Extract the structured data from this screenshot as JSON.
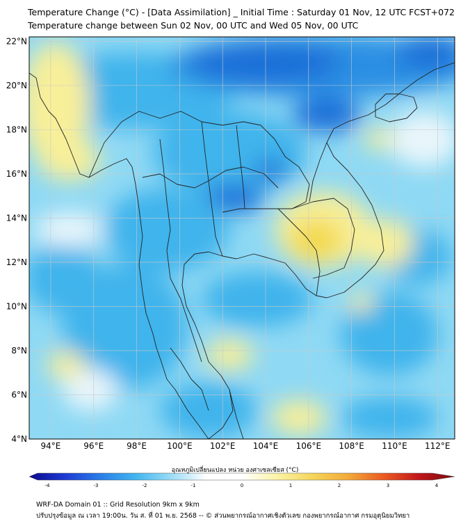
{
  "header": {
    "title": "Temperature Change (°C) - [Data Assimilation] _ Initial Time : Saturday 01 Nov, 12 UTC FCST+072",
    "subtitle": "Temperature change between Sun 02 Nov, 00 UTC and Wed 05 Nov, 00 UTC"
  },
  "map": {
    "lon_labels": [
      "94°E",
      "96°E",
      "98°E",
      "100°E",
      "102°E",
      "104°E",
      "106°E",
      "108°E",
      "110°E",
      "112°E"
    ],
    "lat_labels": [
      "22°N",
      "20°N",
      "18°N",
      "16°N",
      "14°N",
      "12°N",
      "10°N",
      "8°N",
      "6°N",
      "4°N"
    ],
    "colors": {
      "cold_strong": "#1d6fd8",
      "cold": "#3fb4ec",
      "cool": "#8fd9f4",
      "neutral": "#e9f6fb",
      "warm": "#f8ef99",
      "warm_strong": "#f3d94e"
    }
  },
  "colorbar": {
    "label": "อุณหภูมิเปลี่ยนแปลง หน่วย องศาเซลเซียส (°C)",
    "ticks": [
      "-4",
      "-3",
      "-2",
      "-1",
      "0",
      "1",
      "2",
      "3",
      "4"
    ],
    "colors": [
      "#0a0a8c",
      "#1e3ad2",
      "#2a7de8",
      "#41b6ef",
      "#9adcf6",
      "#ffffff",
      "#ffffff",
      "#fbf3a6",
      "#f5d55a",
      "#f2a93a",
      "#ea5a22",
      "#c0161b",
      "#7a0a0f"
    ]
  },
  "footer": {
    "line1": "WRF-DA Domain 01 :: Grid Resolution 9km x 9km",
    "line2": "ปรับปรุงข้อมูล ณ เวลา 19:00น. วัน ส. ที่ 01 พ.ย. 2568 -- © ส่วนพยากรณ์อากาศเชิงตัวเลข กองพยากรณ์อากาศ กรมอุตุนิยมวิทยา"
  }
}
